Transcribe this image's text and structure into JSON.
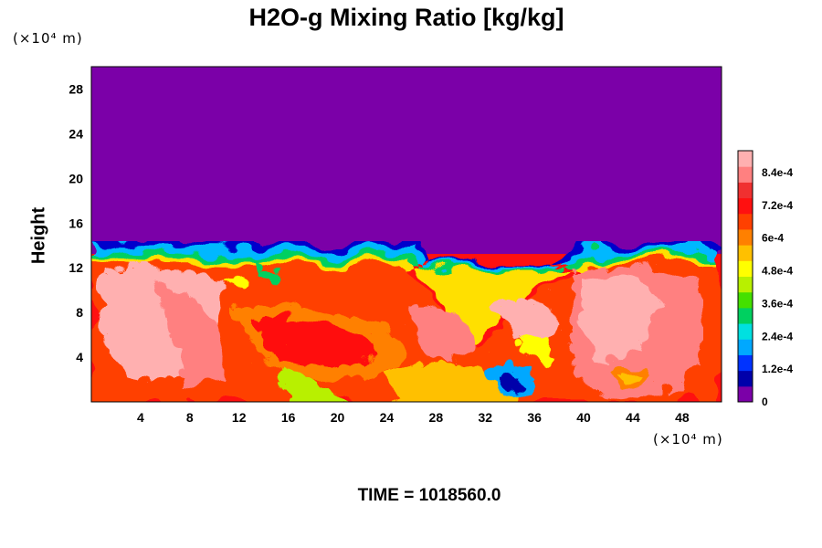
{
  "chart_data": {
    "type": "heatmap",
    "title": "H2O-g Mixing Ratio [kg/kg]",
    "ylabel": "Height",
    "xlabel": "",
    "y_unit_label": "(×10⁴ m)",
    "x_unit_label": "(×10⁴ m)",
    "x_ticks": [
      "4",
      "8",
      "12",
      "16",
      "20",
      "24",
      "28",
      "32",
      "36",
      "40",
      "44",
      "48"
    ],
    "y_ticks": [
      "4",
      "8",
      "12",
      "16",
      "20",
      "24",
      "28"
    ],
    "xlim": [
      0,
      51.2
    ],
    "ylim": [
      0,
      30
    ],
    "colorbar": {
      "ticks": [
        "0",
        "1.2e-4",
        "2.4e-4",
        "3.6e-4",
        "4.8e-4",
        "6e-4",
        "7.2e-4",
        "8.4e-4"
      ],
      "range": [
        0,
        0.00092
      ],
      "colors": [
        "#7b00a8",
        "#0000aa",
        "#0033ff",
        "#00a8ff",
        "#00e0e0",
        "#00d060",
        "#44e000",
        "#b8f000",
        "#ffff00",
        "#ffc000",
        "#ff8000",
        "#ff4000",
        "#ff1010",
        "#f03030",
        "#ff8080",
        "#ffb0b0"
      ]
    },
    "regions": {
      "dry_upper_layer_value": 0,
      "moist_lower_layer_top_height": 14,
      "moist_lower_layer_value_approx": 0.00082
    },
    "time_label": "TIME = 1018560.0"
  }
}
